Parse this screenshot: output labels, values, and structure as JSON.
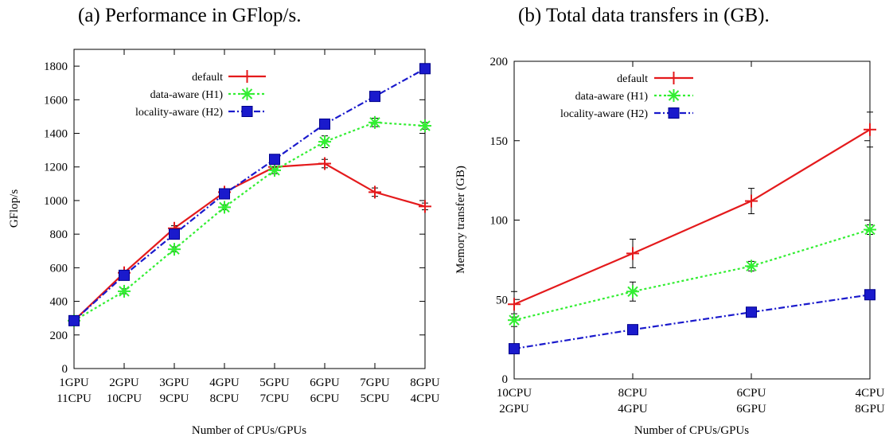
{
  "chart_data": [
    {
      "type": "line",
      "title": "(a) Performance in GFlop/s.",
      "xlabel": "Number of CPUs/GPUs",
      "ylabel": "GFlop/s",
      "ylim": [
        0,
        1900
      ],
      "yticks": [
        0,
        200,
        400,
        600,
        800,
        1000,
        1200,
        1400,
        1600,
        1800
      ],
      "categories": [
        [
          "1GPU",
          "11CPU"
        ],
        [
          "2GPU",
          "10CPU"
        ],
        [
          "3GPU",
          "9CPU"
        ],
        [
          "4GPU",
          "8CPU"
        ],
        [
          "5GPU",
          "7CPU"
        ],
        [
          "6GPU",
          "6CPU"
        ],
        [
          "7GPU",
          "5CPU"
        ],
        [
          "8GPU",
          "4CPU"
        ]
      ],
      "legend_position": "top-right",
      "grid": false,
      "series": [
        {
          "name": "default",
          "color": "#e41a1c",
          "marker": "plus",
          "dash": "",
          "values": [
            285,
            570,
            835,
            1050,
            1200,
            1220,
            1050,
            965
          ],
          "errors": [
            10,
            15,
            15,
            20,
            20,
            25,
            25,
            20
          ]
        },
        {
          "name": "data-aware (H1)",
          "color": "#33ee33",
          "marker": "star",
          "dash": "3,3",
          "values": [
            285,
            460,
            710,
            960,
            1180,
            1350,
            1465,
            1445
          ],
          "errors": [
            10,
            15,
            15,
            15,
            20,
            35,
            25,
            20
          ]
        },
        {
          "name": "locality-aware (H2)",
          "color": "#1a1acc",
          "marker": "square",
          "dash": "8,3,2,3",
          "values": [
            285,
            555,
            800,
            1040,
            1245,
            1455,
            1620,
            1785
          ],
          "errors": [
            0,
            0,
            0,
            0,
            0,
            0,
            0,
            0
          ]
        }
      ]
    },
    {
      "type": "line",
      "title": "(b) Total data transfers in (GB).",
      "xlabel": "Number of CPUs/GPUs",
      "ylabel": "Memory transfer (GB)",
      "ylim": [
        0,
        200
      ],
      "yticks": [
        0,
        50,
        100,
        150,
        200
      ],
      "categories": [
        [
          "10CPU",
          "2GPU"
        ],
        [
          "8CPU",
          "4GPU"
        ],
        [
          "6CPU",
          "6GPU"
        ],
        [
          "4CPU",
          "8GPU"
        ]
      ],
      "legend_position": "top-left",
      "grid": false,
      "series": [
        {
          "name": "default",
          "color": "#e41a1c",
          "marker": "plus",
          "dash": "",
          "values": [
            47,
            79,
            112,
            157
          ],
          "errors": [
            8,
            9,
            8,
            11
          ]
        },
        {
          "name": "data-aware (H1)",
          "color": "#33ee33",
          "marker": "star",
          "dash": "3,3",
          "values": [
            37,
            55,
            71,
            94
          ],
          "errors": [
            4,
            6,
            3,
            3
          ]
        },
        {
          "name": "locality-aware (H2)",
          "color": "#1a1acc",
          "marker": "square",
          "dash": "8,3,2,3",
          "values": [
            19,
            31,
            42,
            53
          ],
          "errors": [
            0,
            0,
            0,
            0
          ]
        }
      ]
    }
  ]
}
